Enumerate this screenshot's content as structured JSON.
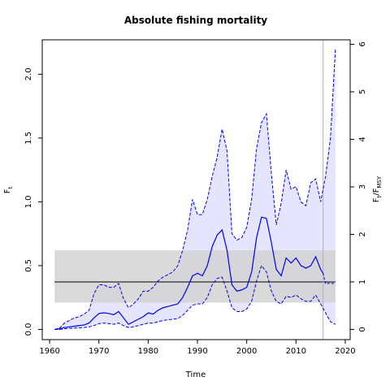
{
  "chart_data": {
    "type": "line",
    "title": "Absolute fishing mortality",
    "xlabel": "Time",
    "ylabel_left": "F",
    "ylabel_left_sub": "t",
    "ylabel_right_parts": [
      "F",
      "t",
      "/F",
      "MSY"
    ],
    "xlim": [
      1958.5,
      2021
    ],
    "ylim_left": [
      -0.08,
      2.27
    ],
    "ylim_right_ratio": 0.3725,
    "x_ticks": [
      1960,
      1970,
      1980,
      1990,
      2000,
      2010,
      2020
    ],
    "y_ticks_left": [
      "0.0",
      "0.5",
      "1.0",
      "1.5",
      "2.0"
    ],
    "y_ticks_left_values": [
      0.0,
      0.5,
      1.0,
      1.5,
      2.0
    ],
    "y_ticks_right": [
      0,
      1,
      2,
      3,
      4,
      5,
      6
    ],
    "fmsy_band": {
      "x": [
        1961,
        2018
      ],
      "lower": 0.21,
      "upper": 0.62
    },
    "fmsy_line": 0.3725,
    "vline_x": 2015.5,
    "colors": {
      "series": "#0000ee",
      "band": "#d3d3d3",
      "ci_fill": "#ccccff",
      "fmsy_line": "#000000",
      "vline": "#b0b0b0"
    },
    "series": [
      {
        "role": "estimate",
        "x": [
          1961,
          1962,
          1963,
          1964,
          1965,
          1966,
          1967,
          1968,
          1969,
          1970,
          1971,
          1972,
          1973,
          1974,
          1975,
          1976,
          1977,
          1978,
          1979,
          1980,
          1981,
          1982,
          1983,
          1984,
          1985,
          1986,
          1987,
          1988,
          1989,
          1990,
          1991,
          1992,
          1993,
          1994,
          1995,
          1996,
          1997,
          1998,
          1999,
          2000,
          2001,
          2002,
          2003,
          2004,
          2005,
          2006,
          2007,
          2008,
          2009,
          2010,
          2011,
          2012,
          2013,
          2014,
          2015,
          2015.5
        ],
        "y": [
          0.0,
          0.005,
          0.015,
          0.02,
          0.025,
          0.03,
          0.035,
          0.05,
          0.09,
          0.125,
          0.13,
          0.125,
          0.115,
          0.14,
          0.09,
          0.04,
          0.06,
          0.08,
          0.1,
          0.13,
          0.12,
          0.15,
          0.17,
          0.18,
          0.19,
          0.2,
          0.25,
          0.33,
          0.42,
          0.44,
          0.42,
          0.5,
          0.65,
          0.74,
          0.78,
          0.62,
          0.35,
          0.3,
          0.31,
          0.33,
          0.45,
          0.72,
          0.88,
          0.87,
          0.68,
          0.47,
          0.42,
          0.56,
          0.52,
          0.56,
          0.5,
          0.48,
          0.5,
          0.57,
          0.47,
          0.44
        ]
      },
      {
        "role": "upper-ci",
        "x": [
          1961,
          1962,
          1963,
          1964,
          1965,
          1966,
          1967,
          1968,
          1969,
          1970,
          1971,
          1972,
          1973,
          1974,
          1975,
          1976,
          1977,
          1978,
          1979,
          1980,
          1981,
          1982,
          1983,
          1984,
          1985,
          1986,
          1987,
          1988,
          1989,
          1990,
          1991,
          1992,
          1993,
          1994,
          1995,
          1996,
          1997,
          1998,
          1999,
          2000,
          2001,
          2002,
          2003,
          2004,
          2005,
          2006,
          2007,
          2008,
          2009,
          2010,
          2011,
          2012,
          2013,
          2014,
          2015,
          2016,
          2017,
          2018
        ],
        "y": [
          0.0,
          0.01,
          0.05,
          0.07,
          0.09,
          0.1,
          0.12,
          0.15,
          0.28,
          0.35,
          0.35,
          0.33,
          0.33,
          0.36,
          0.24,
          0.17,
          0.2,
          0.24,
          0.3,
          0.3,
          0.33,
          0.38,
          0.41,
          0.43,
          0.45,
          0.5,
          0.62,
          0.78,
          1.02,
          0.9,
          0.9,
          1.02,
          1.2,
          1.35,
          1.57,
          1.4,
          0.75,
          0.7,
          0.72,
          0.8,
          1.02,
          1.42,
          1.62,
          1.69,
          1.22,
          0.82,
          0.99,
          1.25,
          1.1,
          1.12,
          1.0,
          0.97,
          1.15,
          1.18,
          1.0,
          1.2,
          1.5,
          2.2
        ]
      },
      {
        "role": "lower-ci",
        "x": [
          1961,
          1962,
          1963,
          1964,
          1965,
          1966,
          1967,
          1968,
          1969,
          1970,
          1971,
          1972,
          1973,
          1974,
          1975,
          1976,
          1977,
          1978,
          1979,
          1980,
          1981,
          1982,
          1983,
          1984,
          1985,
          1986,
          1987,
          1988,
          1989,
          1990,
          1991,
          1992,
          1993,
          1994,
          1995,
          1996,
          1997,
          1998,
          1999,
          2000,
          2001,
          2002,
          2003,
          2004,
          2005,
          2006,
          2007,
          2008,
          2009,
          2010,
          2011,
          2012,
          2013,
          2014,
          2015,
          2016,
          2017,
          2018
        ],
        "y": [
          0.0,
          0.0,
          0.005,
          0.008,
          0.01,
          0.012,
          0.015,
          0.02,
          0.03,
          0.045,
          0.05,
          0.045,
          0.04,
          0.05,
          0.03,
          0.015,
          0.02,
          0.03,
          0.04,
          0.05,
          0.05,
          0.06,
          0.07,
          0.075,
          0.08,
          0.085,
          0.11,
          0.15,
          0.19,
          0.2,
          0.2,
          0.25,
          0.35,
          0.4,
          0.41,
          0.3,
          0.17,
          0.14,
          0.14,
          0.16,
          0.22,
          0.38,
          0.5,
          0.45,
          0.3,
          0.22,
          0.2,
          0.26,
          0.25,
          0.27,
          0.24,
          0.22,
          0.22,
          0.27,
          0.2,
          0.13,
          0.06,
          0.04
        ]
      },
      {
        "role": "prediction",
        "x": [
          2015.5,
          2016,
          2017,
          2018
        ],
        "y": [
          0.44,
          0.36,
          0.36,
          0.36
        ]
      }
    ]
  }
}
